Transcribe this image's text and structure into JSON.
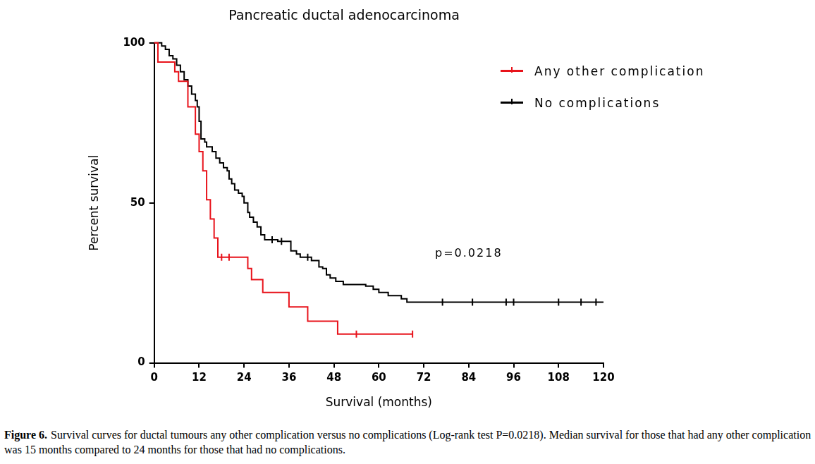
{
  "chart_data": {
    "type": "line",
    "title": "Pancreatic ductal adenocarcinoma",
    "x_label": "Survival (months)",
    "y_label": "Percent survival",
    "xlim": [
      0,
      120
    ],
    "xticks": [
      0,
      12,
      24,
      36,
      48,
      60,
      72,
      84,
      96,
      108,
      120
    ],
    "ylim": [
      0,
      100
    ],
    "yticks": [
      0,
      50,
      100
    ],
    "grid": false,
    "legend": "top right",
    "line_style": "step",
    "marker": "tick",
    "series": [
      {
        "name": "Any other complication",
        "color": "#e8131b",
        "x": [
          0,
          1,
          5.5,
          6.5,
          9,
          11,
          12,
          13,
          14,
          15,
          16,
          17,
          25,
          26,
          29,
          36,
          41,
          49,
          69
        ],
        "values": [
          100,
          94,
          91,
          88,
          80,
          71.5,
          66,
          60,
          51,
          45,
          39,
          33,
          29.5,
          26,
          22,
          17.5,
          13,
          9,
          9
        ],
        "censored_x": [
          18,
          20,
          54,
          69
        ],
        "censored_values": [
          33,
          33,
          9,
          9
        ]
      },
      {
        "name": "No complications",
        "color": "#000000",
        "x": [
          0,
          2,
          3,
          4,
          5,
          6,
          7,
          8,
          9,
          10,
          11,
          11.5,
          12,
          12.5,
          13.5,
          14,
          15.5,
          16.5,
          17.5,
          18.5,
          19.5,
          20,
          20.7,
          21.5,
          22.5,
          23.5,
          24,
          25,
          25.5,
          26.5,
          27.5,
          28.5,
          29.5,
          33,
          36.5,
          38,
          39,
          42,
          44,
          45,
          46,
          47,
          48.5,
          50.5,
          56.5,
          58.5,
          60,
          62.5,
          66,
          67.5,
          120
        ],
        "values": [
          100,
          99,
          98,
          96,
          95,
          93,
          91,
          88.5,
          86.5,
          84,
          82,
          80,
          75.5,
          70,
          69,
          67.5,
          66,
          64,
          62.5,
          61,
          60,
          57.5,
          56,
          54,
          53,
          52,
          50,
          47,
          45.5,
          44,
          42.5,
          40,
          38.5,
          38,
          35,
          34,
          33,
          32,
          30,
          29.5,
          27.5,
          26.5,
          25.5,
          24.5,
          24,
          23,
          22,
          21,
          20,
          19,
          19
        ],
        "censored_x": [
          31.5,
          34,
          41,
          77,
          85,
          94,
          96,
          108,
          114,
          118
        ],
        "censored_values": [
          38.5,
          38,
          33,
          19,
          19,
          19,
          19,
          19,
          19,
          19
        ]
      }
    ],
    "annotations": [
      {
        "text": "p=0.0218",
        "x": 84,
        "y": 34
      }
    ],
    "caption_label": "Figure 6.",
    "caption": "Survival curves for ductal tumours any other complication versus no complications (Log-rank test P=0.0218).  Median survival for those that had any other complication was 15 months compared to 24 months for those that had no complications."
  }
}
